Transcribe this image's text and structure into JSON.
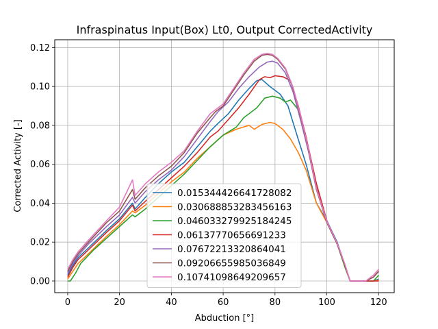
{
  "chart_data": {
    "type": "line",
    "title": "Infraspinatus Input(Box) Lt0, Output CorrectedActivity",
    "xlabel": "Abduction [°]",
    "ylabel": "Corrected Activity [-]",
    "xlim": [
      -5,
      126
    ],
    "ylim": [
      -0.006,
      0.124
    ],
    "xticks": [
      0,
      20,
      40,
      60,
      80,
      100,
      120
    ],
    "yticks": [
      0.0,
      0.02,
      0.04,
      0.06,
      0.08,
      0.1,
      0.12
    ],
    "xtick_labels": [
      "0",
      "20",
      "40",
      "60",
      "80",
      "100",
      "120"
    ],
    "ytick_labels": [
      "0.00",
      "0.02",
      "0.04",
      "0.06",
      "0.08",
      "0.10",
      "0.12"
    ],
    "grid": true,
    "legend_position": "lower-center",
    "series": [
      {
        "name": "0.015344426641728082",
        "color": "#1f77b4",
        "x": [
          0,
          2,
          4,
          8,
          15,
          20,
          25,
          26,
          30,
          35,
          40,
          45,
          50,
          55,
          58,
          62,
          66,
          70,
          73,
          75,
          78,
          82,
          85,
          88,
          92,
          96,
          100,
          104,
          107,
          109,
          112,
          115,
          118,
          120
        ],
        "y": [
          0.003,
          0.008,
          0.012,
          0.017,
          0.026,
          0.032,
          0.04,
          0.037,
          0.043,
          0.05,
          0.056,
          0.061,
          0.069,
          0.077,
          0.081,
          0.086,
          0.093,
          0.099,
          0.103,
          0.1035,
          0.1,
          0.096,
          0.09,
          0.077,
          0.06,
          0.04,
          0.031,
          0.02,
          0.008,
          0.0,
          0.0,
          0.0,
          0.0,
          0.001
        ]
      },
      {
        "name": "0.030688853283456163",
        "color": "#ff7f0e",
        "x": [
          0,
          2,
          4,
          8,
          15,
          20,
          25,
          26,
          30,
          35,
          40,
          45,
          50,
          55,
          60,
          65,
          70,
          72,
          75,
          78,
          80,
          83,
          86,
          89,
          92,
          96,
          100,
          104,
          107,
          109,
          112,
          115,
          118,
          120
        ],
        "y": [
          0.001,
          0.005,
          0.009,
          0.014,
          0.023,
          0.029,
          0.036,
          0.035,
          0.039,
          0.045,
          0.051,
          0.056,
          0.063,
          0.069,
          0.075,
          0.078,
          0.08,
          0.078,
          0.0805,
          0.0815,
          0.081,
          0.078,
          0.073,
          0.066,
          0.057,
          0.04,
          0.03,
          0.019,
          0.007,
          0.0,
          0.0,
          0.0,
          0.0,
          0.0005
        ]
      },
      {
        "name": "0.046033279925184245",
        "color": "#2ca02c",
        "x": [
          0,
          1,
          3,
          5,
          10,
          15,
          20,
          25,
          26,
          30,
          35,
          40,
          45,
          50,
          55,
          60,
          65,
          68,
          70,
          73,
          76,
          79,
          82,
          84,
          86,
          89,
          92,
          96,
          100,
          104,
          107,
          109,
          112,
          115,
          118,
          120
        ],
        "y": [
          0.0,
          0.0,
          0.004,
          0.009,
          0.016,
          0.022,
          0.028,
          0.034,
          0.033,
          0.037,
          0.043,
          0.049,
          0.055,
          0.062,
          0.069,
          0.075,
          0.079,
          0.084,
          0.086,
          0.089,
          0.094,
          0.095,
          0.094,
          0.092,
          0.093,
          0.088,
          0.072,
          0.048,
          0.03,
          0.019,
          0.007,
          0.0,
          0.0,
          0.0,
          0.0,
          0.003
        ]
      },
      {
        "name": "0.06137770656691233",
        "color": "#d62728",
        "x": [
          0,
          2,
          4,
          8,
          15,
          20,
          25,
          26,
          30,
          35,
          40,
          45,
          50,
          55,
          58,
          62,
          66,
          70,
          74,
          76,
          78,
          80,
          83,
          86,
          89,
          92,
          96,
          100,
          104,
          107,
          109,
          112,
          115,
          118,
          120
        ],
        "y": [
          0.002,
          0.007,
          0.011,
          0.016,
          0.025,
          0.031,
          0.039,
          0.036,
          0.041,
          0.047,
          0.053,
          0.059,
          0.066,
          0.074,
          0.077,
          0.083,
          0.089,
          0.096,
          0.1035,
          0.105,
          0.1045,
          0.1055,
          0.105,
          0.103,
          0.09,
          0.074,
          0.05,
          0.031,
          0.019,
          0.008,
          0.0,
          0.0,
          0.0,
          0.0,
          0.0
        ]
      },
      {
        "name": "0.07672213320864041",
        "color": "#9467bd",
        "x": [
          0,
          2,
          4,
          8,
          15,
          20,
          25,
          26,
          30,
          35,
          40,
          45,
          50,
          55,
          58,
          62,
          66,
          70,
          74,
          77,
          79,
          81,
          84,
          87,
          90,
          93,
          96,
          100,
          104,
          107,
          109,
          112,
          115,
          118,
          120
        ],
        "y": [
          0.004,
          0.009,
          0.013,
          0.019,
          0.028,
          0.034,
          0.043,
          0.04,
          0.046,
          0.052,
          0.057,
          0.064,
          0.073,
          0.082,
          0.087,
          0.092,
          0.099,
          0.105,
          0.11,
          0.1125,
          0.113,
          0.112,
          0.107,
          0.097,
          0.082,
          0.066,
          0.047,
          0.031,
          0.019,
          0.008,
          0.0,
          0.0,
          0.0,
          0.002,
          0.005
        ]
      },
      {
        "name": "0.09206655985036849",
        "color": "#8c564b",
        "x": [
          0,
          2,
          4,
          8,
          15,
          20,
          25,
          26,
          30,
          35,
          40,
          45,
          50,
          55,
          57,
          60,
          64,
          68,
          72,
          75,
          77,
          79,
          81,
          84,
          87,
          90,
          93,
          96,
          100,
          104,
          107,
          109,
          112,
          115,
          118,
          120
        ],
        "y": [
          0.005,
          0.01,
          0.014,
          0.02,
          0.03,
          0.036,
          0.047,
          0.042,
          0.048,
          0.054,
          0.059,
          0.066,
          0.076,
          0.084,
          0.087,
          0.09,
          0.098,
          0.106,
          0.113,
          0.116,
          0.1165,
          0.116,
          0.114,
          0.109,
          0.099,
          0.084,
          0.067,
          0.047,
          0.03,
          0.019,
          0.008,
          0.0,
          0.0,
          0.0,
          0.002,
          0.005
        ]
      },
      {
        "name": "0.10741098649209657",
        "color": "#e377c2",
        "x": [
          0,
          2,
          4,
          8,
          15,
          20,
          25,
          26,
          30,
          35,
          40,
          45,
          50,
          55,
          57,
          60,
          64,
          68,
          72,
          75,
          77,
          79,
          81,
          84,
          87,
          90,
          93,
          96,
          100,
          104,
          107,
          109,
          112,
          115,
          118,
          120
        ],
        "y": [
          0.006,
          0.011,
          0.015,
          0.021,
          0.031,
          0.038,
          0.052,
          0.044,
          0.05,
          0.056,
          0.061,
          0.067,
          0.077,
          0.086,
          0.088,
          0.091,
          0.099,
          0.107,
          0.114,
          0.1165,
          0.117,
          0.1165,
          0.1145,
          0.1095,
          0.0995,
          0.0845,
          0.0675,
          0.0475,
          0.0305,
          0.0195,
          0.0085,
          0.0,
          0.0,
          0.0,
          0.003,
          0.006
        ]
      }
    ]
  }
}
